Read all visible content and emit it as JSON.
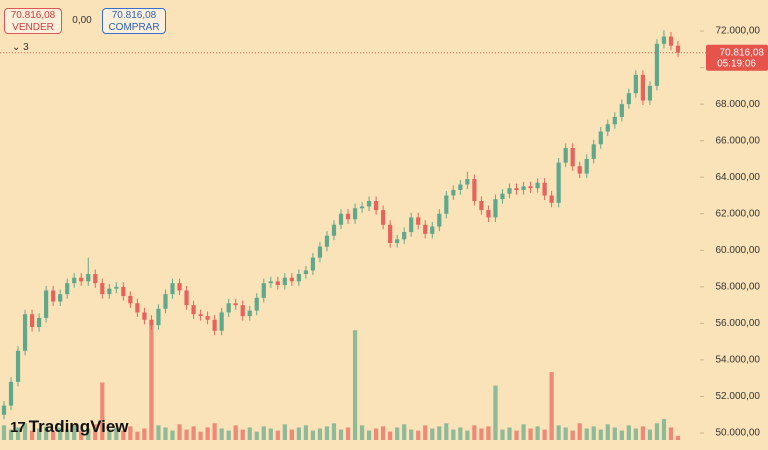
{
  "header": {
    "sell": {
      "price": "70.816,08",
      "label": "VENDER"
    },
    "spread": "0,00",
    "buy": {
      "price": "70.816,08",
      "label": "COMPRAR"
    },
    "indicator_count": "3"
  },
  "brand": "TradingView",
  "chart_data": {
    "type": "candlestick",
    "up_color": "#5fa88c",
    "down_color": "#e5635b",
    "ylim": [
      49070,
      73700
    ],
    "yticks": [
      {
        "value": 50000,
        "label": "50.000,00"
      },
      {
        "value": 52000,
        "label": "52.000,00"
      },
      {
        "value": 54000,
        "label": "54.000,00"
      },
      {
        "value": 56000,
        "label": "56.000,00"
      },
      {
        "value": 58000,
        "label": "58.000,00"
      },
      {
        "value": 60000,
        "label": "60.000,00"
      },
      {
        "value": 62000,
        "label": "62.000,00"
      },
      {
        "value": 64000,
        "label": "64.000,00"
      },
      {
        "value": 66000,
        "label": "66.000,00"
      },
      {
        "value": 68000,
        "label": "68.000,00"
      },
      {
        "value": 70000,
        "label": "70.000,00"
      },
      {
        "value": 72000,
        "label": "72.000,00"
      }
    ],
    "last_price": {
      "value": 70816.08,
      "label": "70.816,08",
      "time": "05:19:06"
    },
    "open": [
      51000,
      51500,
      52800,
      54500,
      56500,
      55800,
      56300,
      57800,
      57200,
      57600,
      58200,
      58500,
      58300,
      58700,
      58200,
      57600,
      57900,
      58000,
      57500,
      57100,
      56600,
      56200,
      55900,
      56800,
      57600,
      58200,
      57800,
      57000,
      56500,
      56400,
      56200,
      55600,
      56600,
      57100,
      57000,
      56400,
      56700,
      57400,
      58200,
      58300,
      58100,
      58500,
      58300,
      58700,
      58900,
      59600,
      60200,
      60800,
      61400,
      62000,
      61700,
      62300,
      62400,
      62700,
      62200,
      61400,
      60400,
      60600,
      61000,
      61800,
      61400,
      60900,
      61300,
      62000,
      63000,
      63300,
      63600,
      63900,
      62700,
      62200,
      61800,
      62800,
      63100,
      63400,
      63300,
      63500,
      63400,
      63700,
      63000,
      62600,
      64800,
      65600,
      64600,
      64200,
      65000,
      65800,
      66500,
      66900,
      67300,
      68000,
      68600,
      69600,
      68200,
      69000,
      71300,
      71700,
      71200
    ],
    "high": [
      51750,
      53050,
      54750,
      56750,
      56750,
      56550,
      58050,
      58050,
      57850,
      58450,
      58750,
      58750,
      59600,
      58950,
      58450,
      58150,
      58250,
      58250,
      57750,
      57350,
      56850,
      56450,
      57050,
      57850,
      58450,
      58450,
      58050,
      57250,
      56750,
      56650,
      56450,
      56850,
      57350,
      57350,
      57250,
      56950,
      57650,
      58450,
      58550,
      58550,
      58750,
      58750,
      58950,
      59150,
      59850,
      60450,
      61050,
      61650,
      62250,
      62250,
      62550,
      62650,
      62950,
      62950,
      62450,
      61650,
      60850,
      61250,
      62050,
      62050,
      61650,
      61550,
      62250,
      63250,
      63550,
      63850,
      64300,
      64150,
      62950,
      62450,
      63050,
      63350,
      63650,
      63650,
      63750,
      63750,
      63950,
      63950,
      63250,
      65050,
      65850,
      65850,
      64850,
      65250,
      66050,
      66750,
      67150,
      67550,
      68250,
      68850,
      69850,
      69850,
      69250,
      71550,
      72050,
      71950,
      71450
    ],
    "low": [
      50750,
      51250,
      52550,
      54250,
      55550,
      55550,
      56050,
      56950,
      56950,
      57350,
      57950,
      58050,
      58050,
      57950,
      57350,
      57350,
      57650,
      57250,
      56850,
      56350,
      55950,
      55650,
      55650,
      56550,
      57350,
      57550,
      56750,
      56250,
      56150,
      55950,
      55350,
      55350,
      56350,
      56750,
      56150,
      56150,
      56450,
      57150,
      57950,
      57850,
      57850,
      58050,
      58050,
      58450,
      58650,
      59350,
      59950,
      60550,
      61150,
      61450,
      61450,
      62050,
      62150,
      61950,
      61150,
      60150,
      60150,
      60350,
      60750,
      61150,
      60650,
      60650,
      61050,
      61750,
      62750,
      63050,
      63350,
      62450,
      61950,
      61550,
      61550,
      62550,
      62850,
      63050,
      63050,
      63150,
      63150,
      62750,
      62350,
      62350,
      64550,
      64350,
      63950,
      63950,
      64750,
      65550,
      66250,
      66650,
      67050,
      67750,
      68350,
      67950,
      67950,
      68750,
      71050,
      70950,
      70566
    ],
    "close": [
      51500,
      52800,
      54500,
      56500,
      55800,
      56300,
      57800,
      57200,
      57600,
      58200,
      58500,
      58300,
      58700,
      58200,
      57600,
      57900,
      58000,
      57500,
      57100,
      56600,
      56200,
      55900,
      56800,
      57600,
      58200,
      57800,
      57000,
      56500,
      56400,
      56200,
      55600,
      56600,
      57100,
      57000,
      56400,
      56700,
      57400,
      58200,
      58300,
      58100,
      58500,
      58300,
      58700,
      58900,
      59600,
      60200,
      60800,
      61400,
      62000,
      61700,
      62300,
      62400,
      62700,
      62200,
      61400,
      60400,
      60600,
      61000,
      61800,
      61400,
      60900,
      61300,
      62000,
      63000,
      63300,
      63600,
      63900,
      62700,
      62200,
      61800,
      62800,
      63100,
      63400,
      63300,
      63500,
      63400,
      63700,
      63000,
      62600,
      64800,
      65600,
      64600,
      64200,
      65000,
      65800,
      66500,
      66900,
      67300,
      68000,
      68600,
      69600,
      68200,
      69000,
      71300,
      71700,
      71200,
      70816.08
    ],
    "volume": [
      14,
      10,
      12,
      16,
      9,
      11,
      13,
      8,
      12,
      10,
      14,
      9,
      11,
      15,
      55,
      10,
      12,
      9,
      13,
      8,
      11,
      110,
      14,
      12,
      9,
      15,
      10,
      13,
      8,
      12,
      16,
      11,
      9,
      14,
      10,
      12,
      8,
      13,
      11,
      9,
      15,
      10,
      12,
      14,
      9,
      11,
      13,
      16,
      10,
      12,
      105,
      14,
      9,
      11,
      13,
      8,
      12,
      15,
      10,
      9,
      14,
      11,
      13,
      16,
      10,
      12,
      9,
      14,
      11,
      13,
      52,
      10,
      12,
      9,
      15,
      11,
      13,
      10,
      65,
      14,
      12,
      9,
      16,
      11,
      13,
      10,
      15,
      12,
      9,
      14,
      11,
      13,
      10,
      16,
      20,
      12,
      4
    ]
  }
}
